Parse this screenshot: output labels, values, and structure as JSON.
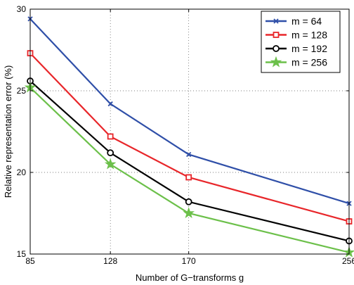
{
  "chart_data": {
    "type": "line",
    "title": "",
    "xlabel": "Number of G−transforms g",
    "ylabel": "Relative representation error (%)",
    "x": [
      85,
      128,
      170,
      256
    ],
    "x_ticks": [
      "85",
      "128",
      "170",
      "256"
    ],
    "y_ticks": [
      "15",
      "20",
      "25",
      "30"
    ],
    "xlim": [
      85,
      256
    ],
    "ylim": [
      15,
      30
    ],
    "grid": true,
    "legend_position": "top-right",
    "series": [
      {
        "name": "m = 64",
        "color": "#2f4fa8",
        "marker": "x",
        "values": [
          29.4,
          24.2,
          21.1,
          18.1
        ]
      },
      {
        "name": "m = 128",
        "color": "#e8262a",
        "marker": "square",
        "values": [
          27.3,
          22.2,
          19.7,
          17.0
        ]
      },
      {
        "name": "m = 192",
        "color": "#000000",
        "marker": "circle",
        "values": [
          25.6,
          21.2,
          18.2,
          15.8
        ]
      },
      {
        "name": "m = 256",
        "color": "#6cc04a",
        "marker": "star",
        "values": [
          25.2,
          20.5,
          17.5,
          15.1
        ]
      }
    ]
  }
}
